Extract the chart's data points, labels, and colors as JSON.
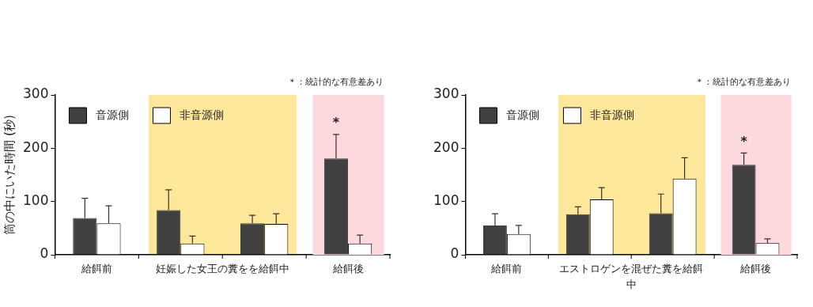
{
  "chart_data": [
    {
      "type": "bar",
      "ylabel": "筒の中にいた時間 (秒)",
      "categories": [
        "給餌前",
        null,
        null,
        "給餌後"
      ],
      "series": [
        {
          "name": "音源側",
          "color": "#404040",
          "values": [
            69,
            84,
            59,
            181
          ],
          "errors": [
            [
              69,
              106
            ],
            [
              84,
              122
            ],
            [
              59,
              74
            ],
            [
              181,
              226
            ]
          ]
        },
        {
          "name": "非音源側",
          "color": "#ffffff",
          "values": [
            59,
            21,
            58,
            21
          ],
          "errors": [
            [
              59,
              92
            ],
            [
              21,
              35
            ],
            [
              58,
              77
            ],
            [
              21,
              37
            ]
          ]
        }
      ],
      "ylim": [
        0,
        300
      ],
      "yticks": [
        0,
        100,
        200,
        300
      ],
      "grid": false,
      "legend": "top left",
      "bands": [
        {
          "axis": "x",
          "from": "給餌後",
          "to": "給餌後",
          "color": "#fdd9de"
        }
      ],
      "annotations": [
        "＊：統計的な有意差あり",
        "*",
        "妊娠した女王の糞をを給餌中"
      ]
    },
    {
      "type": "bar",
      "categories": [
        "給餌前",
        null,
        null,
        "給餌後"
      ],
      "series": [
        {
          "name": "音源側",
          "color": "#404040",
          "values": [
            55,
            76,
            78,
            169
          ],
          "errors": [
            [
              55,
              77
            ],
            [
              76,
              90
            ],
            [
              78,
              114
            ],
            [
              169,
              191
            ]
          ]
        },
        {
          "name": "非音源側",
          "color": "#ffffff",
          "values": [
            39,
            104,
            143,
            22
          ],
          "errors": [
            [
              39,
              55
            ],
            [
              104,
              126
            ],
            [
              143,
              182
            ],
            [
              22,
              30
            ]
          ]
        }
      ],
      "ylim": [
        0,
        300
      ],
      "yticks": [
        0,
        100,
        200,
        300
      ],
      "grid": false,
      "legend": "top left",
      "bands": [
        {
          "axis": "x",
          "from": "給餌後",
          "to": "給餌後",
          "color": "#fdd9de"
        }
      ],
      "annotations": [
        "＊：統計的な有意差あり",
        "*",
        "エストロゲンを混ぜた糞を給餌中"
      ]
    }
  ]
}
